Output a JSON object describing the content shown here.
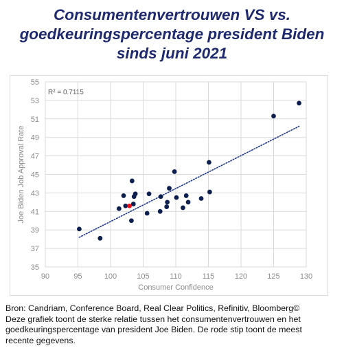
{
  "title": {
    "lines": [
      "Consumentenvertrouwen VS vs.",
      "goedkeuringspercentage president Biden",
      "sinds juni 2021"
    ]
  },
  "caption": {
    "lines": [
      "Bron: Candriam, Conference Board, Real Clear Politics, Refinitiv, Bloomberg©",
      "Deze grafiek toont de sterke relatie tussen het consumentenvertrouwen en het",
      "goedkeuringspercentage van president Joe Biden. De rode stip toont de meest",
      "recente gegevens."
    ]
  },
  "colors": {
    "title": "#1f2a6e",
    "point": "#0d1f4f",
    "highlight": "#e8101c",
    "trendline": "#1f3a8a",
    "grid": "#d9d9d9",
    "axis_text": "#8a8a8a"
  },
  "chart_data": {
    "type": "scatter",
    "xlabel": "Consumer Confidence",
    "ylabel": "Joe Biden Job Approval Rate",
    "xlim": [
      90,
      130
    ],
    "ylim": [
      35,
      55
    ],
    "xticks": [
      90,
      95,
      100,
      105,
      110,
      115,
      120,
      125,
      130
    ],
    "yticks": [
      35,
      37,
      39,
      41,
      43,
      45,
      47,
      49,
      51,
      53,
      55
    ],
    "grid": true,
    "annotation": "R² = 0.7115",
    "trendline": {
      "style": "dotted",
      "x": [
        95.2,
        128.9
      ],
      "y": [
        38.2,
        50.2
      ]
    },
    "points": [
      {
        "x": 95.2,
        "y": 39.1
      },
      {
        "x": 98.4,
        "y": 38.1
      },
      {
        "x": 101.3,
        "y": 41.3
      },
      {
        "x": 102.0,
        "y": 42.7
      },
      {
        "x": 102.3,
        "y": 41.6
      },
      {
        "x": 103.2,
        "y": 40.0
      },
      {
        "x": 103.3,
        "y": 44.3
      },
      {
        "x": 103.5,
        "y": 41.8
      },
      {
        "x": 103.6,
        "y": 42.6
      },
      {
        "x": 103.8,
        "y": 42.9
      },
      {
        "x": 105.6,
        "y": 40.8
      },
      {
        "x": 105.9,
        "y": 42.9
      },
      {
        "x": 107.6,
        "y": 41.0
      },
      {
        "x": 107.7,
        "y": 42.6
      },
      {
        "x": 108.6,
        "y": 41.5
      },
      {
        "x": 108.7,
        "y": 42.0
      },
      {
        "x": 109.0,
        "y": 43.5
      },
      {
        "x": 109.8,
        "y": 45.3
      },
      {
        "x": 110.1,
        "y": 42.5
      },
      {
        "x": 111.1,
        "y": 41.4
      },
      {
        "x": 111.6,
        "y": 42.7
      },
      {
        "x": 111.9,
        "y": 42.0
      },
      {
        "x": 113.9,
        "y": 42.4
      },
      {
        "x": 115.1,
        "y": 46.3
      },
      {
        "x": 115.2,
        "y": 43.1
      },
      {
        "x": 125.0,
        "y": 51.3
      },
      {
        "x": 128.9,
        "y": 52.7
      }
    ],
    "highlight_point": {
      "x": 102.9,
      "y": 41.6
    }
  }
}
